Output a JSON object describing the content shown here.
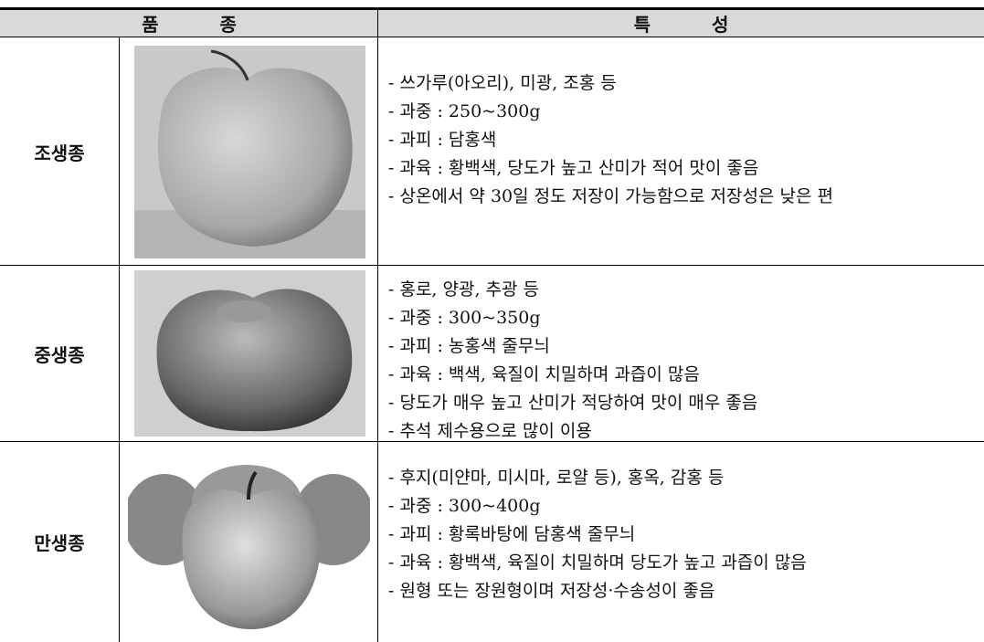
{
  "table": {
    "header": [
      "품 종",
      "특 성"
    ],
    "rows": [
      {
        "variety": "조생종",
        "characteristics": [
          "- 쓰가루(아오리), 미광, 조홍 등",
          "- 과중 : 250~300g",
          "- 과피 : 담홍색",
          "- 과육 : 황백색, 당도가 높고 산미가 적어 맛이 좋음",
          "- 상온에서 약 30일 정도 저장이 가능함으로 저장성은 낮은 편"
        ]
      },
      {
        "variety": "중생종",
        "characteristics": [
          "- 홍로, 양광, 추광 등",
          "- 과중 : 300~350g",
          "- 과피 : 농홍색 줄무늬",
          "- 과육 : 백색, 육질이 치밀하며 과즙이 많음",
          "- 당도가 매우 높고 산미가 적당하여 맛이 매우 좋음",
          "- 추석 제수용으로 많이 이용"
        ]
      },
      {
        "variety": "만생종",
        "characteristics": [
          "- 후지(미얀마, 미시마, 로얄 등), 홍옥, 감홍 등",
          "- 과중 : 300~400g",
          "- 과피 : 황록바탕에 담홍색 줄무늬",
          "- 과육 : 황백색, 육질이 치밀하며 당도가 높고 과즙이 많음",
          "- 원형 또는 장원형이며 저장성·수송성이 좋음"
        ]
      }
    ]
  }
}
